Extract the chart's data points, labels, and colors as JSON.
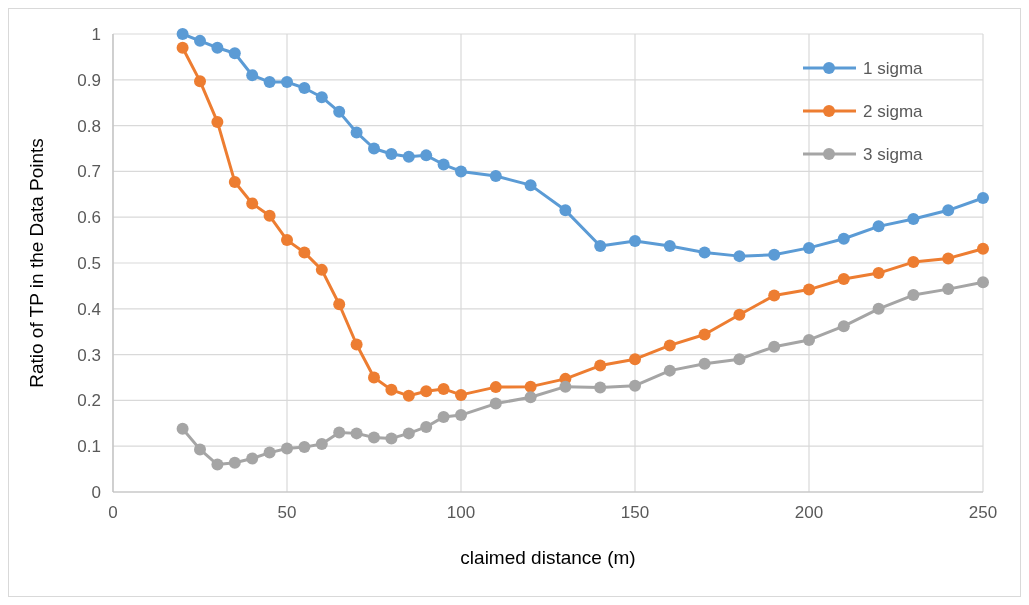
{
  "chart_data": {
    "type": "line",
    "xlabel": "claimed distance (m)",
    "ylabel": "Ratio of TP in the Data Points",
    "x": [
      20,
      25,
      30,
      35,
      40,
      45,
      50,
      55,
      60,
      65,
      70,
      75,
      80,
      85,
      90,
      95,
      100,
      110,
      120,
      130,
      140,
      150,
      160,
      170,
      180,
      190,
      200,
      210,
      220,
      230,
      240,
      250
    ],
    "series": [
      {
        "name": "1 sigma",
        "color": "#5b9bd5",
        "values": [
          1.0,
          0.985,
          0.97,
          0.958,
          0.91,
          0.895,
          0.895,
          0.882,
          0.862,
          0.83,
          0.785,
          0.75,
          0.738,
          0.732,
          0.735,
          0.715,
          0.7,
          0.69,
          0.67,
          0.615,
          0.537,
          0.548,
          0.537,
          0.523,
          0.515,
          0.518,
          0.533,
          0.553,
          0.58,
          0.596,
          0.615,
          0.642
        ]
      },
      {
        "name": "2 sigma",
        "color": "#ed7d31",
        "values": [
          0.97,
          0.897,
          0.808,
          0.677,
          0.63,
          0.603,
          0.55,
          0.523,
          0.485,
          0.41,
          0.322,
          0.25,
          0.223,
          0.21,
          0.22,
          0.225,
          0.212,
          0.229,
          0.23,
          0.247,
          0.276,
          0.29,
          0.32,
          0.344,
          0.387,
          0.429,
          0.442,
          0.465,
          0.478,
          0.502,
          0.51,
          0.531
        ]
      },
      {
        "name": "3 sigma",
        "color": "#a5a5a5",
        "values": [
          0.138,
          0.093,
          0.06,
          0.064,
          0.073,
          0.086,
          0.095,
          0.098,
          0.105,
          0.13,
          0.128,
          0.119,
          0.117,
          0.128,
          0.142,
          0.164,
          0.168,
          0.193,
          0.207,
          0.23,
          0.228,
          0.232,
          0.265,
          0.28,
          0.29,
          0.317,
          0.332,
          0.362,
          0.4,
          0.43,
          0.443,
          0.458
        ]
      }
    ],
    "xlim": [
      0,
      250
    ],
    "xticks": [
      0,
      50,
      100,
      150,
      200,
      250
    ],
    "ylim": [
      0,
      1
    ],
    "yticks": [
      0,
      0.1,
      0.2,
      0.3,
      0.4,
      0.5,
      0.6,
      0.7,
      0.8,
      0.9,
      1
    ],
    "grid": true,
    "legend": "top right",
    "marker": "circle",
    "line_style": "solid"
  }
}
